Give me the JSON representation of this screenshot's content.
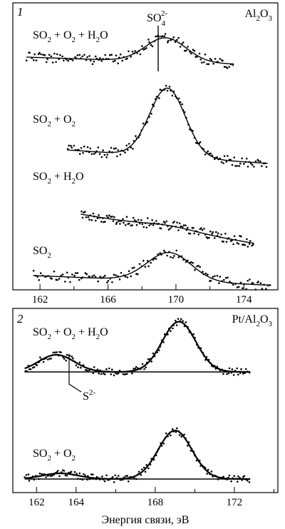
{
  "chart_data": [
    {
      "type": "line",
      "panel_label": "1",
      "catalyst_label": "Al2O3",
      "xlim": [
        160.4,
        176.0
      ],
      "x_reversed": false,
      "xticks": [
        162,
        166,
        170,
        174
      ],
      "xtick_labels": [
        "162",
        "166",
        "170",
        "174"
      ],
      "xlabel": "",
      "annotations": [
        {
          "label_main": "SO",
          "label_sub": "4",
          "label_sup": "2-",
          "x": 169.6
        }
      ],
      "series": [
        {
          "name": "SO2 + O2 + H2O",
          "name_parts": [
            "SO",
            "2",
            " + O",
            "2",
            " + H",
            "2",
            "O"
          ],
          "x_start": 161.2,
          "x_end": 173.4,
          "peak_x": 169.4,
          "peak_height": 0.42,
          "peak_sigma": 1.2,
          "baseline_slope": -0.01
        },
        {
          "name": "SO2 + O2",
          "name_parts": [
            "SO",
            "2",
            " + O",
            "2"
          ],
          "x_start": 163.6,
          "x_end": 175.4,
          "peak_x": 169.5,
          "peak_height": 1.2,
          "peak_sigma": 1.05,
          "baseline_slope": -0.02
        },
        {
          "name": "SO2 + H2O",
          "name_parts": [
            "SO",
            "2",
            " + H",
            "2",
            "O"
          ],
          "x_start": 164.4,
          "x_end": 174.6,
          "peak_x": 169.6,
          "peak_height": 0.06,
          "peak_sigma": 1.5,
          "baseline_slope": -0.05
        },
        {
          "name": "SO2",
          "name_parts": [
            "SO",
            "2"
          ],
          "x_start": 161.6,
          "x_end": 175.6,
          "peak_x": 169.6,
          "peak_height": 0.5,
          "peak_sigma": 1.3,
          "baseline_slope": -0.012
        }
      ]
    },
    {
      "type": "line",
      "panel_label": "2",
      "catalyst_label": "Pt/Al2O3",
      "xlim": [
        160.8,
        174.2
      ],
      "xticks": [
        162,
        164,
        168,
        172
      ],
      "xtick_labels": [
        "162",
        "164",
        "168",
        "172"
      ],
      "xlabel": "Энергия связи, эВ",
      "annotations": [
        {
          "label_main": "S",
          "label_sup": "2-",
          "x": 163.0
        }
      ],
      "series": [
        {
          "name": "SO2 + O2 + H2O",
          "name_parts": [
            "SO",
            "2",
            " + O",
            "2",
            " + H",
            "2",
            "O"
          ],
          "x_start": 161.4,
          "x_end": 172.8,
          "peak1_x": 163.0,
          "peak1_height": 0.3,
          "peak2_x": 169.2,
          "peak2_height": 0.88
        },
        {
          "name": "SO2 + O2",
          "name_parts": [
            "SO",
            "2",
            " + O",
            "2"
          ],
          "x_start": 161.4,
          "x_end": 172.8,
          "peak1_x": 163.2,
          "peak1_height": 0.1,
          "peak2_x": 169.0,
          "peak2_height": 0.85
        }
      ]
    }
  ]
}
